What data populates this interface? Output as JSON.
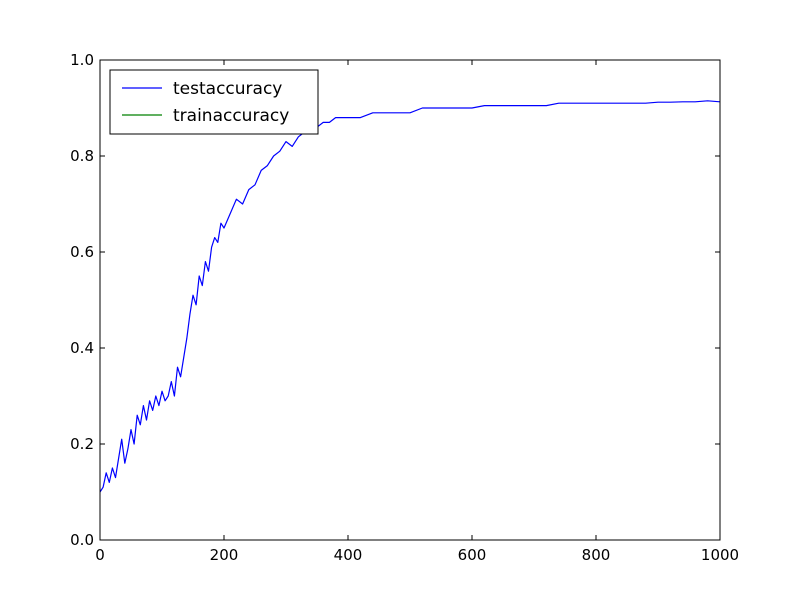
{
  "chart_data": {
    "type": "line",
    "title": "",
    "xlabel": "",
    "ylabel": "",
    "xlim": [
      0,
      1000
    ],
    "ylim": [
      0.0,
      1.0
    ],
    "grid": false,
    "legend_position": "top-left",
    "x_ticks": [
      0,
      200,
      400,
      600,
      800,
      1000
    ],
    "x_tick_labels": [
      "0",
      "200",
      "400",
      "600",
      "800",
      "1000"
    ],
    "y_ticks": [
      0.0,
      0.2,
      0.4,
      0.6,
      0.8,
      1.0
    ],
    "y_tick_labels": [
      "0.0",
      "0.2",
      "0.4",
      "0.6",
      "0.8",
      "1.0"
    ],
    "series": [
      {
        "name": "testaccuracy",
        "color": "#0000ff",
        "x": [
          0,
          5,
          10,
          15,
          20,
          25,
          30,
          35,
          40,
          45,
          50,
          55,
          60,
          65,
          70,
          75,
          80,
          85,
          90,
          95,
          100,
          105,
          110,
          115,
          120,
          125,
          130,
          135,
          140,
          145,
          150,
          155,
          160,
          165,
          170,
          175,
          180,
          185,
          190,
          195,
          200,
          210,
          220,
          230,
          240,
          250,
          260,
          270,
          280,
          290,
          300,
          310,
          320,
          330,
          340,
          350,
          360,
          370,
          380,
          390,
          400,
          420,
          440,
          460,
          480,
          500,
          520,
          540,
          560,
          580,
          600,
          620,
          640,
          660,
          680,
          700,
          720,
          740,
          760,
          780,
          800,
          820,
          840,
          860,
          880,
          900,
          920,
          940,
          960,
          980,
          1000
        ],
        "y": [
          0.1,
          0.11,
          0.14,
          0.12,
          0.15,
          0.13,
          0.17,
          0.21,
          0.16,
          0.19,
          0.23,
          0.2,
          0.26,
          0.24,
          0.28,
          0.25,
          0.29,
          0.27,
          0.3,
          0.28,
          0.31,
          0.29,
          0.3,
          0.33,
          0.3,
          0.36,
          0.34,
          0.38,
          0.42,
          0.47,
          0.51,
          0.49,
          0.55,
          0.53,
          0.58,
          0.56,
          0.61,
          0.63,
          0.62,
          0.66,
          0.65,
          0.68,
          0.71,
          0.7,
          0.73,
          0.74,
          0.77,
          0.78,
          0.8,
          0.81,
          0.83,
          0.82,
          0.84,
          0.85,
          0.86,
          0.86,
          0.87,
          0.87,
          0.88,
          0.88,
          0.88,
          0.88,
          0.89,
          0.89,
          0.89,
          0.89,
          0.9,
          0.9,
          0.9,
          0.9,
          0.9,
          0.905,
          0.905,
          0.905,
          0.905,
          0.905,
          0.905,
          0.91,
          0.91,
          0.91,
          0.91,
          0.91,
          0.91,
          0.91,
          0.91,
          0.912,
          0.912,
          0.913,
          0.913,
          0.915,
          0.913
        ]
      },
      {
        "name": "trainaccuracy",
        "color": "#008000",
        "x": [],
        "y": []
      }
    ]
  }
}
